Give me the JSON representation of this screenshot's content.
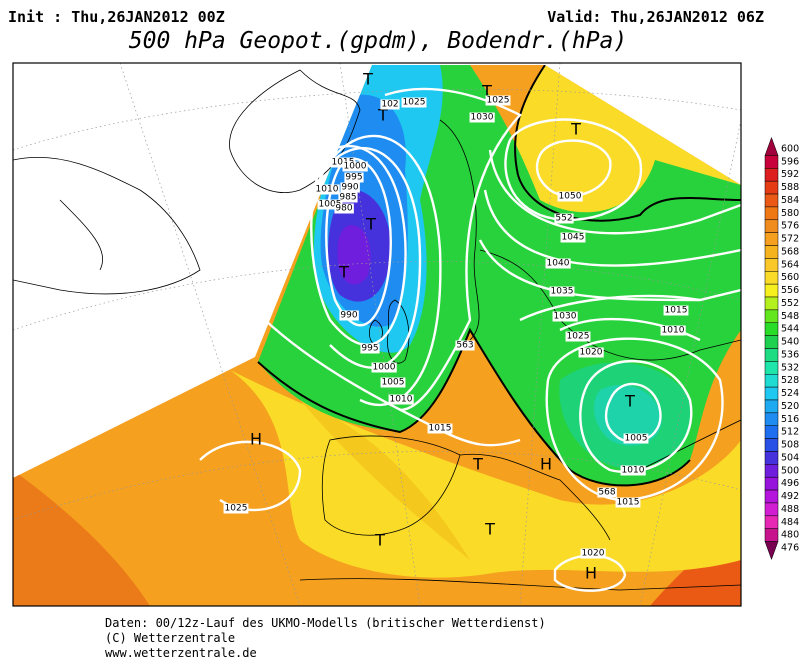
{
  "header": {
    "init": "Init : Thu,26JAN2012 00Z",
    "valid": "Valid: Thu,26JAN2012 06Z",
    "title": "500 hPa Geopot.(gpdm), Bodendr.(hPa)"
  },
  "map": {
    "labels": [
      "T",
      "T",
      "T",
      "102",
      "1025",
      "1025",
      "1030",
      "T",
      "1015",
      "1000",
      "995",
      "990",
      "1010",
      "985",
      "1005",
      "980",
      "T",
      "1050",
      "552",
      "1045",
      "T",
      "1040",
      "1035",
      "990",
      "1030",
      "1015",
      "1010",
      "1025",
      "1020",
      "995",
      "563",
      "1000",
      "1005",
      "1010",
      "T",
      "1015",
      "1005",
      "H",
      "T",
      "H",
      "1010",
      "568",
      "1015",
      "1025",
      "T",
      "T",
      "1020",
      "H"
    ]
  },
  "colorbar": {
    "labels": [
      600,
      596,
      592,
      588,
      584,
      580,
      576,
      572,
      568,
      564,
      560,
      556,
      552,
      548,
      544,
      540,
      536,
      532,
      528,
      524,
      520,
      516,
      512,
      508,
      504,
      500,
      496,
      492,
      488,
      484,
      480,
      476
    ],
    "colors": [
      "#a0003c",
      "#c8003c",
      "#dc1e1e",
      "#e63c14",
      "#eb5a14",
      "#f07814",
      "#f08c1e",
      "#f5a01e",
      "#f5b41e",
      "#fac828",
      "#fadc28",
      "#f5f01e",
      "#b4f01e",
      "#64e61e",
      "#28dc28",
      "#1ed250",
      "#1edc82",
      "#1ee6aa",
      "#1edcd2",
      "#1ec8f0",
      "#1eaaf0",
      "#1e8cf0",
      "#1e6ef0",
      "#2850e6",
      "#4632dc",
      "#6e1edc",
      "#9614dc",
      "#b414dc",
      "#d21ed2",
      "#e628b4",
      "#c8148c",
      "#780050"
    ]
  },
  "footer": {
    "lines": [
      "Daten: 00/12z-Lauf des UKMO-Modells (britischer Wetterdienst)",
      "(C) Wetterzentrale",
      "www.wetterzentrale.de"
    ]
  }
}
